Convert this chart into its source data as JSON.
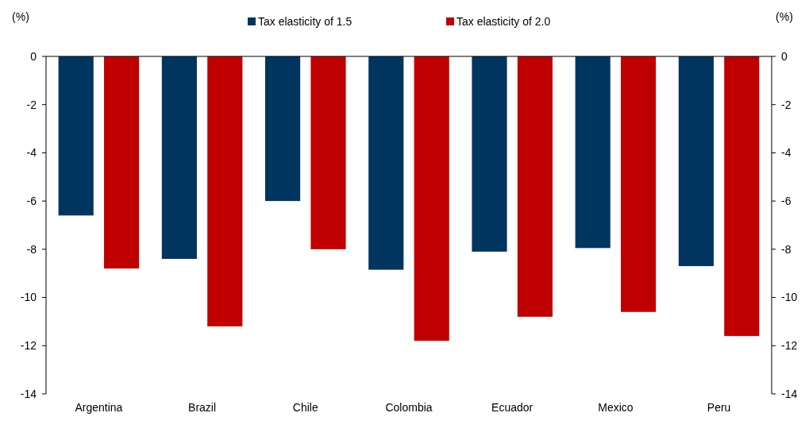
{
  "chart_data": {
    "type": "bar",
    "ylabel": "(%)",
    "y2label": "(%)",
    "categories": [
      "Argentina",
      "Brazil",
      "Chile",
      "Colombia",
      "Ecuador",
      "Mexico",
      "Peru"
    ],
    "series": [
      {
        "name": "Tax elasticity of 1.5",
        "color": "#003560",
        "values": [
          -6.6,
          -8.4,
          -6.0,
          -8.85,
          -8.1,
          -7.95,
          -8.7
        ]
      },
      {
        "name": "Tax elasticity of 2.0",
        "color": "#c00000",
        "values": [
          -8.8,
          -11.2,
          -8.0,
          -11.8,
          -10.8,
          -10.6,
          -11.6
        ]
      }
    ],
    "ylim": [
      -14,
      0
    ],
    "yticks": [
      0,
      -2,
      -4,
      -6,
      -8,
      -10,
      -12,
      -14
    ],
    "y2lim": [
      -14,
      0
    ],
    "y2ticks": [
      0,
      -2,
      -4,
      -6,
      -8,
      -10,
      -12,
      -14
    ],
    "grid": false,
    "legend": "top"
  }
}
